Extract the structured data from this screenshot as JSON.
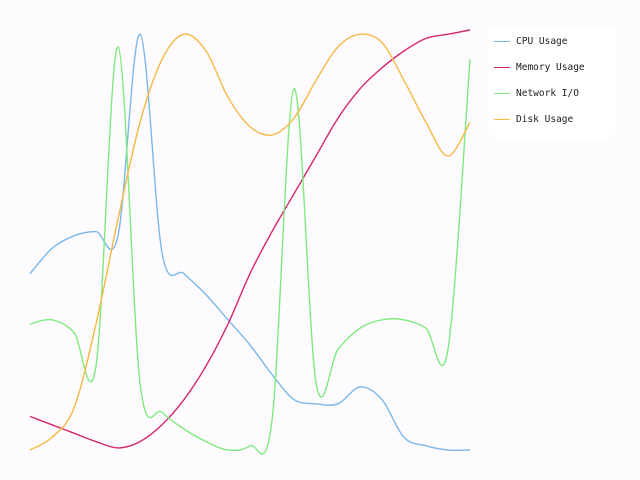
{
  "chart_data": {
    "type": "line",
    "title": "",
    "xlabel": "",
    "ylabel": "",
    "axes_visible": false,
    "grid": false,
    "legend_position": "top-right",
    "x": [
      0,
      1,
      2,
      3,
      4,
      5,
      6,
      7,
      8,
      9,
      10,
      11,
      12,
      13,
      14,
      15,
      16,
      17,
      18,
      19,
      20
    ],
    "xlim": [
      0,
      20
    ],
    "ylim": [
      0,
      100
    ],
    "series": [
      {
        "name": "CPU Usage",
        "color": "#7ab8ec",
        "values": [
          42,
          48,
          51,
          52,
          51,
          99,
          47,
          42,
          37,
          31,
          25,
          18,
          12,
          11,
          11,
          15,
          12,
          3,
          1,
          0,
          0
        ]
      },
      {
        "name": "Memory Usage",
        "color": "#d62670",
        "values": [
          8,
          6,
          4,
          2,
          0.5,
          2,
          6,
          12,
          20,
          30,
          42,
          52,
          61,
          70,
          79,
          86,
          91,
          95,
          98,
          99,
          100
        ]
      },
      {
        "name": "Network I/O",
        "color": "#7fea7f",
        "values": [
          30,
          31,
          28,
          20,
          96,
          16,
          9,
          5,
          2,
          0,
          1,
          7,
          86,
          16,
          24,
          29,
          31,
          31,
          29,
          24,
          93
        ]
      },
      {
        "name": "Disk Usage",
        "color": "#f5b944",
        "values": [
          0,
          3,
          10,
          30,
          55,
          78,
          93,
          99,
          95,
          84,
          77,
          75,
          79,
          88,
          96,
          99,
          97,
          88,
          78,
          70,
          78
        ]
      }
    ]
  }
}
